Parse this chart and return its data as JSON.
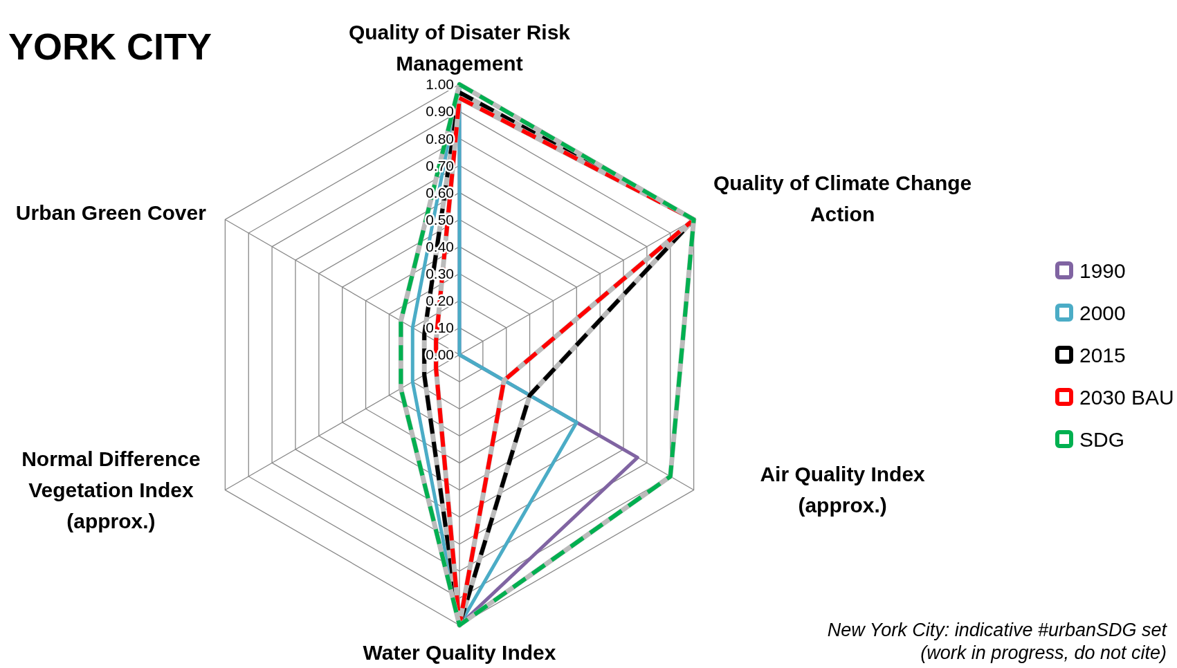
{
  "chart_data": {
    "type": "radar",
    "title": "YORK CITY",
    "categories": [
      "Quality of Disater Risk Management",
      "Quality of Climate Change Action",
      "Air Quality Index (approx.)",
      "Water Quality Index",
      "Normal Difference Vegetation Index (approx.)",
      "Urban Green Cover"
    ],
    "series": [
      {
        "name": "1990",
        "color": "#8064a2",
        "line_style": "solid",
        "values": [
          1.0,
          0.0,
          0.76,
          1.0,
          0.25,
          0.25
        ]
      },
      {
        "name": "2000",
        "color": "#4bacc6",
        "line_style": "solid",
        "values": [
          1.0,
          0.0,
          0.5,
          1.0,
          0.2,
          0.2
        ]
      },
      {
        "name": "2015",
        "color": "#000000",
        "line_style": "dashed",
        "values": [
          0.97,
          1.0,
          0.3,
          1.0,
          0.15,
          0.15
        ]
      },
      {
        "name": "2030 BAU",
        "color": "#ff0000",
        "line_style": "dashed",
        "values": [
          0.95,
          1.0,
          0.19,
          1.0,
          0.1,
          0.1
        ]
      },
      {
        "name": "SDG",
        "color": "#00b050",
        "line_style": "dashed",
        "values": [
          1.0,
          1.0,
          0.9,
          1.0,
          0.25,
          0.25
        ]
      }
    ],
    "ylim": [
      0,
      1
    ],
    "yticks": [
      {
        "value": 0,
        "label": "0.00"
      },
      {
        "value": 0.1,
        "label": "0.10"
      },
      {
        "value": 0.2,
        "label": "0.20"
      },
      {
        "value": 0.3,
        "label": "0.30"
      },
      {
        "value": 0.4,
        "label": "0.40"
      },
      {
        "value": 0.5,
        "label": "0.50"
      },
      {
        "value": 0.6,
        "label": "0.60"
      },
      {
        "value": 0.7,
        "label": "0.70"
      },
      {
        "value": 0.8,
        "label": "0.80"
      },
      {
        "value": 0.9,
        "label": "0.90"
      },
      {
        "value": 1,
        "label": "1.00"
      }
    ],
    "grid": true,
    "legend": "right",
    "marker": "none",
    "annotations": [
      "New York City: indicative #urbanSDG set (work in progress, do not cite)"
    ]
  }
}
